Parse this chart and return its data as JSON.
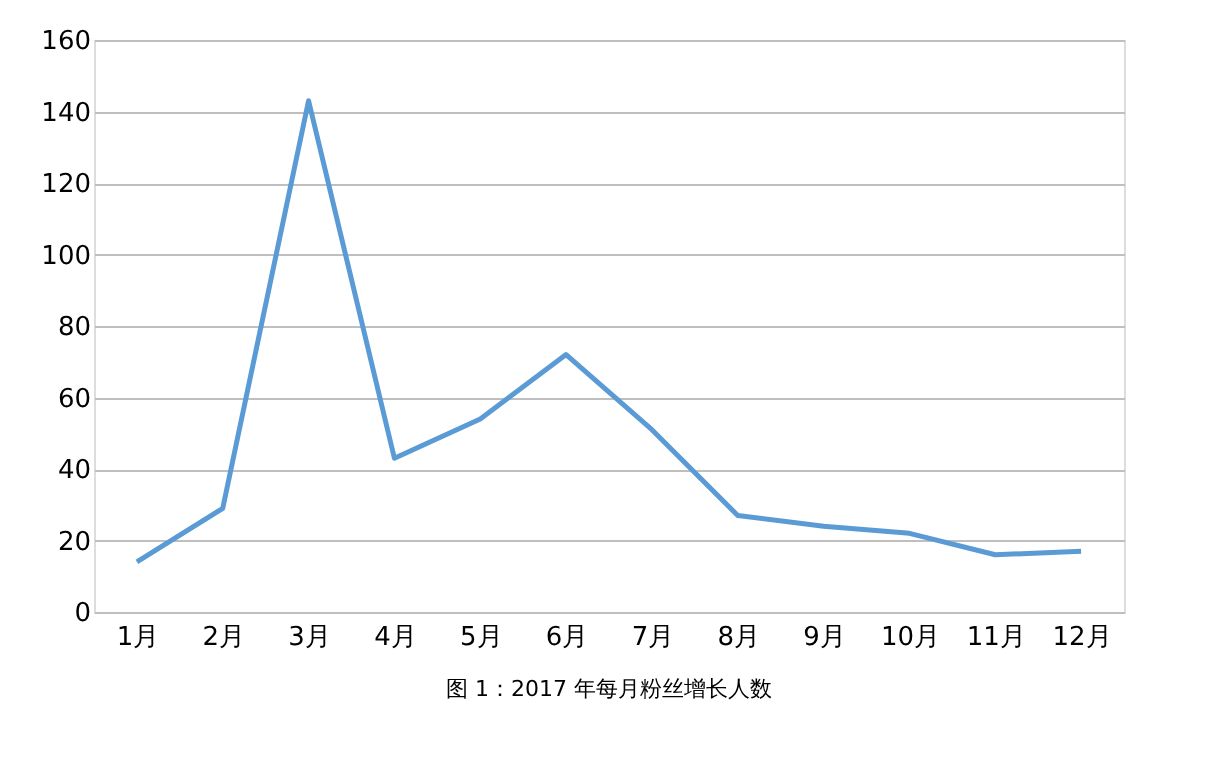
{
  "chart_data": {
    "type": "line",
    "title": "图 1：2017 年每月粉丝增长人数",
    "categories": [
      "1月",
      "2月",
      "3月",
      "4月",
      "5月",
      "6月",
      "7月",
      "8月",
      "9月",
      "10月",
      "11月",
      "12月"
    ],
    "series": [
      {
        "color": "#5b9bd5",
        "values": [
          14,
          29,
          143,
          43,
          54,
          72,
          51,
          27,
          24,
          22,
          16,
          17
        ]
      }
    ],
    "ylim": [
      0,
      160
    ],
    "yticks": [
      0,
      20,
      40,
      60,
      80,
      100,
      120,
      140,
      160
    ],
    "grid": "y",
    "legend": false,
    "marker": "none",
    "line_style": "solid"
  }
}
